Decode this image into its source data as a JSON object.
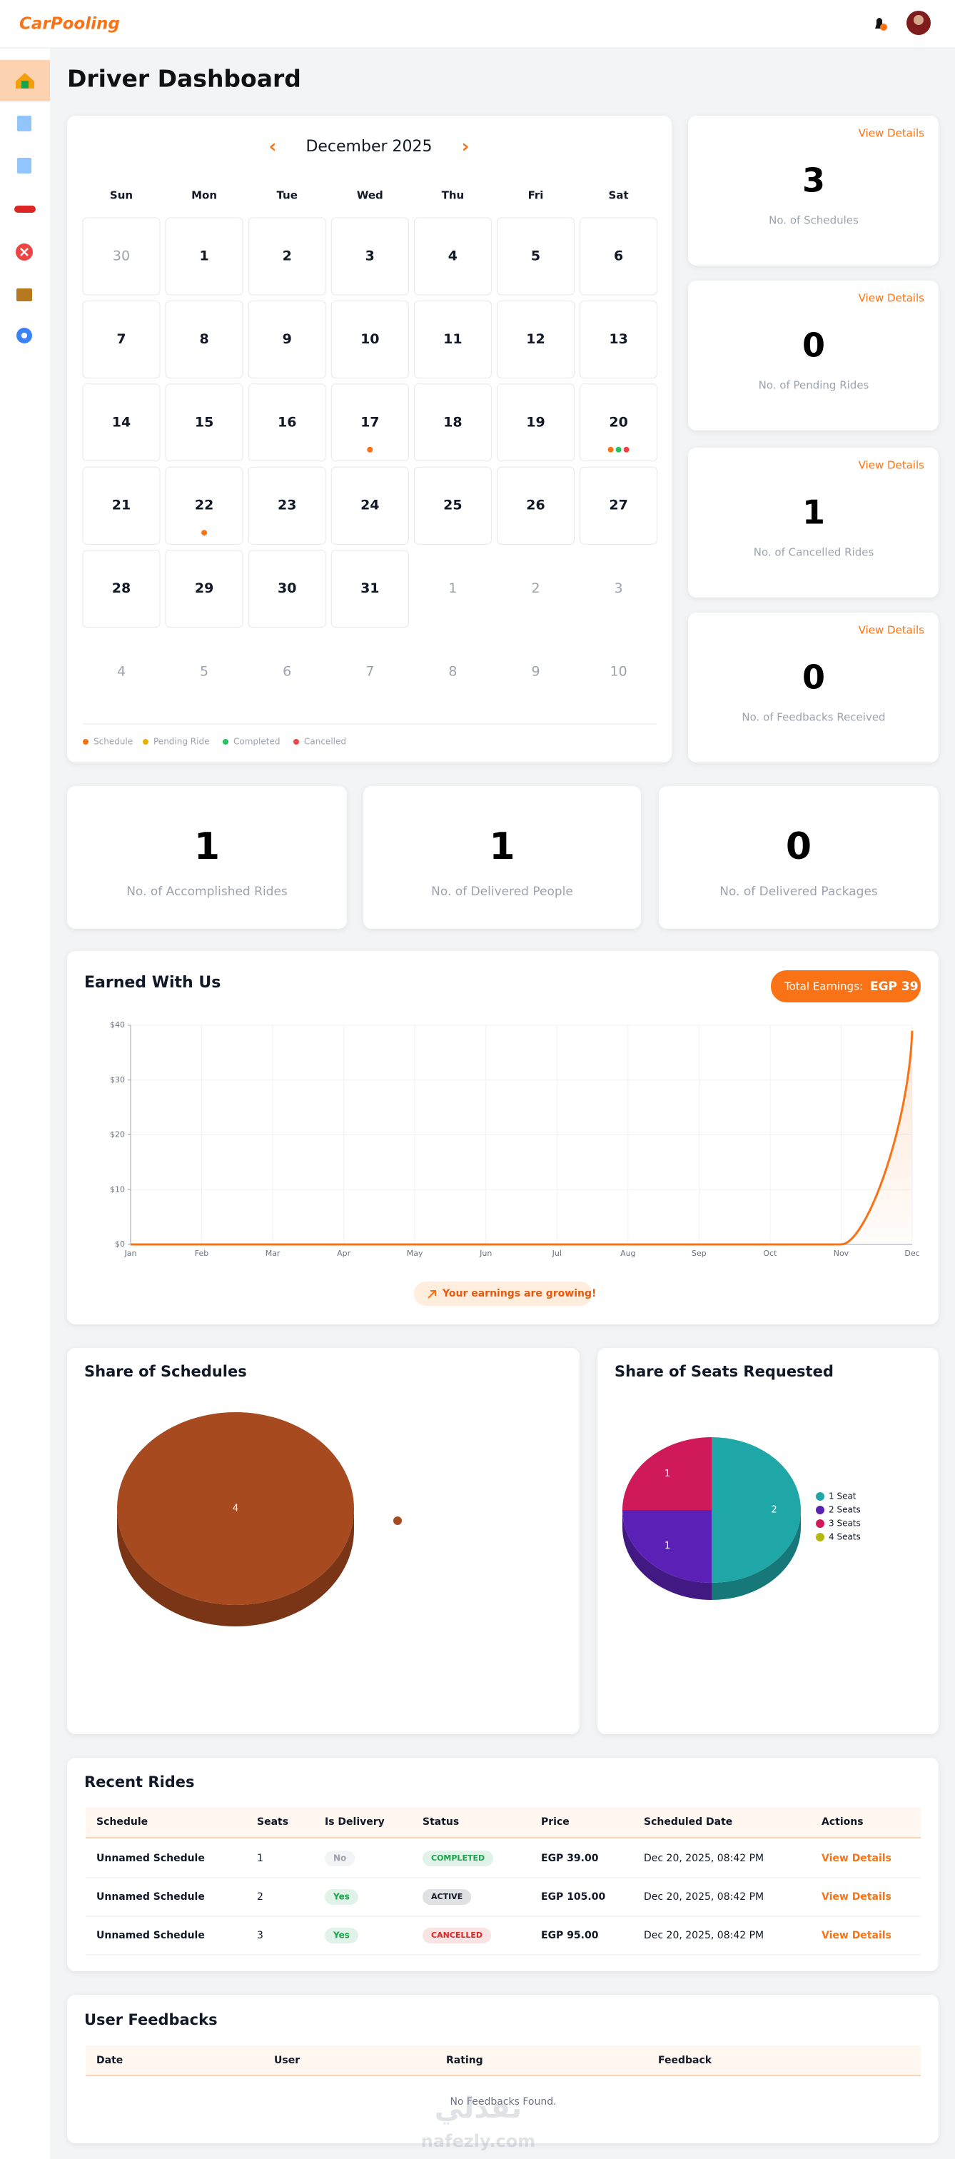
{
  "header": {
    "logo": "CarPooling"
  },
  "page_title": "Driver Dashboard",
  "calendar": {
    "month": "December 2025",
    "prev": "‹",
    "next": "›",
    "weekdays": [
      "Sun",
      "Mon",
      "Tue",
      "Wed",
      "Thu",
      "Fri",
      "Sat"
    ],
    "days": [
      [
        30,
        1,
        2,
        3,
        4,
        5,
        6
      ],
      [
        7,
        8,
        9,
        10,
        11,
        12,
        13
      ],
      [
        14,
        15,
        16,
        17,
        18,
        19,
        20
      ],
      [
        21,
        22,
        23,
        24,
        25,
        26,
        27
      ],
      [
        28,
        29,
        30,
        31,
        1,
        2,
        3
      ],
      [
        4,
        5,
        6,
        7,
        8,
        9,
        10
      ]
    ],
    "markers": [
      {
        "day": 17,
        "legend": [
          0
        ]
      },
      {
        "day": 20,
        "legend": [
          0,
          2,
          3
        ]
      },
      {
        "day": 22,
        "legend": [
          0
        ]
      }
    ],
    "legend": [
      {
        "name": "Schedule",
        "color": "#f97316"
      },
      {
        "name": "Pending Ride",
        "color": "#eab308"
      },
      {
        "name": "Completed",
        "color": "#22c55e"
      },
      {
        "name": "Cancelled",
        "color": "#ef4444"
      }
    ]
  },
  "side_stats": [
    {
      "link": "View Details",
      "value": 3,
      "label": "No. of Schedules"
    },
    {
      "link": "View Details",
      "value": 0,
      "label": "No. of Pending Rides"
    },
    {
      "link": "View Details",
      "value": 1,
      "label": "No. of Cancelled Rides"
    },
    {
      "link": "View Details",
      "value": 0,
      "label": "No. of Feedbacks Received"
    }
  ],
  "summary_stats": [
    {
      "value": 1,
      "label": "No. of Accomplished Rides"
    },
    {
      "value": 1,
      "label": "No. of Delivered People"
    },
    {
      "value": 0,
      "label": "No. of Delivered Packages"
    }
  ],
  "earnings_chart": {
    "type": "line",
    "title": "Earned With Us",
    "total_label": "Total Earnings:",
    "total_value": "EGP 39",
    "categories": [
      "Jan",
      "Feb",
      "Mar",
      "Apr",
      "May",
      "Jun",
      "Jul",
      "Aug",
      "Sep",
      "Oct",
      "Nov",
      "Dec"
    ],
    "values": [
      0,
      0,
      0,
      0,
      0,
      0,
      0,
      0,
      0,
      0,
      0,
      39
    ],
    "color": "#f97316",
    "ylim": [
      0,
      40
    ],
    "yticks": [
      {
        "value": 0,
        "label": "$0"
      },
      {
        "value": 10,
        "label": "$10"
      },
      {
        "value": 20,
        "label": "$20"
      },
      {
        "value": 30,
        "label": "$30"
      },
      {
        "value": 40,
        "label": "$40"
      }
    ],
    "grid": true,
    "annotation": "Your earnings are growing!"
  },
  "schedules_chart": {
    "type": "pie",
    "title": "Share of Schedules",
    "categories": [
      null
    ],
    "values": [
      4
    ],
    "colors": [
      "#a84a1f"
    ]
  },
  "seats_chart": {
    "type": "pie",
    "title": "Share of Seats Requested",
    "categories": [
      "1 Seat",
      "2 Seats",
      "3 Seats",
      "4 Seats"
    ],
    "values": [
      2,
      1,
      1,
      0
    ],
    "colors": [
      "#1fa7a7",
      "#5b21b6",
      "#d0195a",
      "#b5b80f"
    ],
    "legend": "right"
  },
  "recent_rides": {
    "title": "Recent Rides",
    "columns": [
      "Schedule",
      "Seats",
      "Is Delivery",
      "Status",
      "Price",
      "Scheduled Date",
      "Actions"
    ],
    "rows": [
      {
        "cells": [
          "Unnamed Schedule",
          "1",
          "No",
          "COMPLETED",
          "EGP  39.00",
          "Dec 20, 2025, 08:42 PM",
          "View Details"
        ],
        "delivery_color": "#9ca3af",
        "status_color": "#16a34a"
      },
      {
        "cells": [
          "Unnamed Schedule",
          "2",
          "Yes",
          "ACTIVE",
          "EGP  105.00",
          "Dec 20, 2025, 08:42 PM",
          "View Details"
        ],
        "delivery_color": "#16a34a",
        "status_color": "#111827"
      },
      {
        "cells": [
          "Unnamed Schedule",
          "3",
          "Yes",
          "CANCELLED",
          "EGP  95.00",
          "Dec 20, 2025, 08:42 PM",
          "View Details"
        ],
        "delivery_color": "#16a34a",
        "status_color": "#dc2626"
      }
    ]
  },
  "feedbacks": {
    "title": "User Feedbacks",
    "columns": [
      "Date",
      "User",
      "Rating",
      "Feedback"
    ],
    "empty": "No Feedbacks Found."
  },
  "watermark": {
    "arabic": "نفذلي",
    "latin": "nafezly.com"
  }
}
